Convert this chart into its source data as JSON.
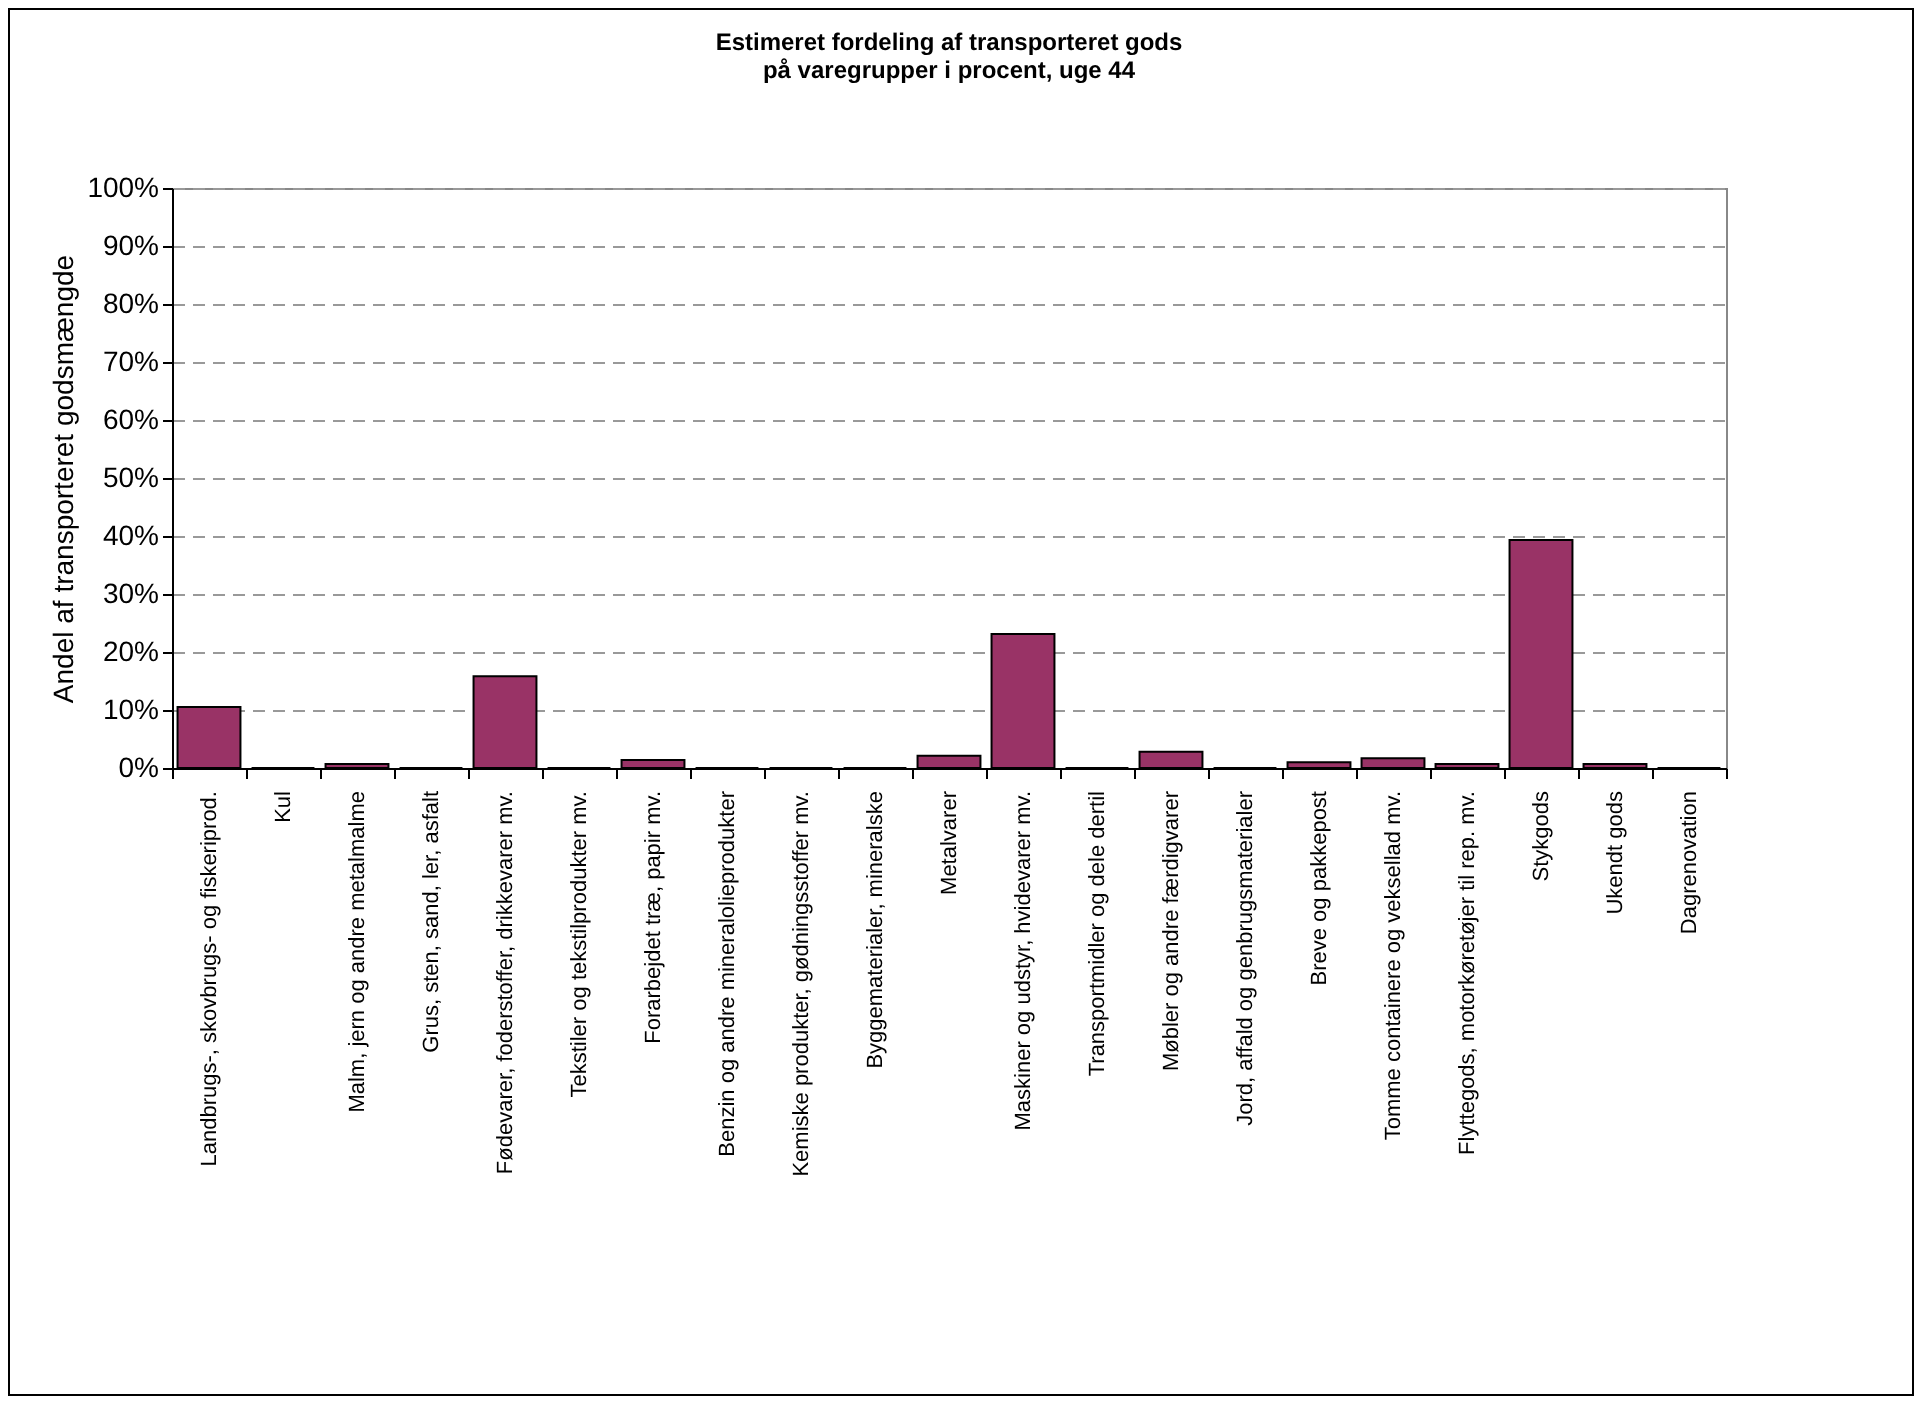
{
  "chart_data": {
    "type": "bar",
    "title": [
      "Estimeret fordeling af transporteret gods",
      "på varegrupper i procent, uge 44"
    ],
    "ylabel": "Andel af transporteret godsmængde",
    "categories": [
      "Landbrugs-, skovbrugs- og fiskeriprod.",
      "Kul",
      "Malm, jern og andre metalmalme",
      "Grus, sten, sand, ler, asfalt",
      "Fødevarer, foderstoffer, drikkevarer mv.",
      "Tekstiler og tekstilprodukter mv.",
      "Forarbejdet træ, papir mv.",
      "Benzin og andre mineralolieprodukter",
      "Kemiske produkter, gødningsstoffer mv.",
      "Byggematerialer, mineralske",
      "Metalvarer",
      "Maskiner og udstyr, hvidevarer mv.",
      "Transportmidler og dele dertil",
      "Møbler og andre færdigvarer",
      "Jord, affald og genbrugsmaterialer",
      "Breve og pakkepost",
      "Tomme containere og veksellad mv.",
      "Flyttegods, motorkøretøjer til rep. mv.",
      "Stykgods",
      "Ukendt gods",
      "Dagrenovation"
    ],
    "values": [
      10.5,
      0,
      0.7,
      0,
      15.8,
      0,
      1.4,
      0,
      0,
      0,
      2.1,
      23.1,
      0,
      2.8,
      0,
      1.0,
      1.7,
      0.7,
      39.3,
      0.7,
      0
    ],
    "color": "#993366",
    "ylim": [
      0,
      100
    ],
    "yticks": [
      {
        "value": 0,
        "label": "0%"
      },
      {
        "value": 10,
        "label": "10%"
      },
      {
        "value": 20,
        "label": "20%"
      },
      {
        "value": 30,
        "label": "30%"
      },
      {
        "value": 40,
        "label": "40%"
      },
      {
        "value": 50,
        "label": "50%"
      },
      {
        "value": 60,
        "label": "60%"
      },
      {
        "value": 70,
        "label": "70%"
      },
      {
        "value": 80,
        "label": "80%"
      },
      {
        "value": 90,
        "label": "90%"
      },
      {
        "value": 100,
        "label": "100%"
      }
    ],
    "grid": "y",
    "line_style": "dashed"
  }
}
